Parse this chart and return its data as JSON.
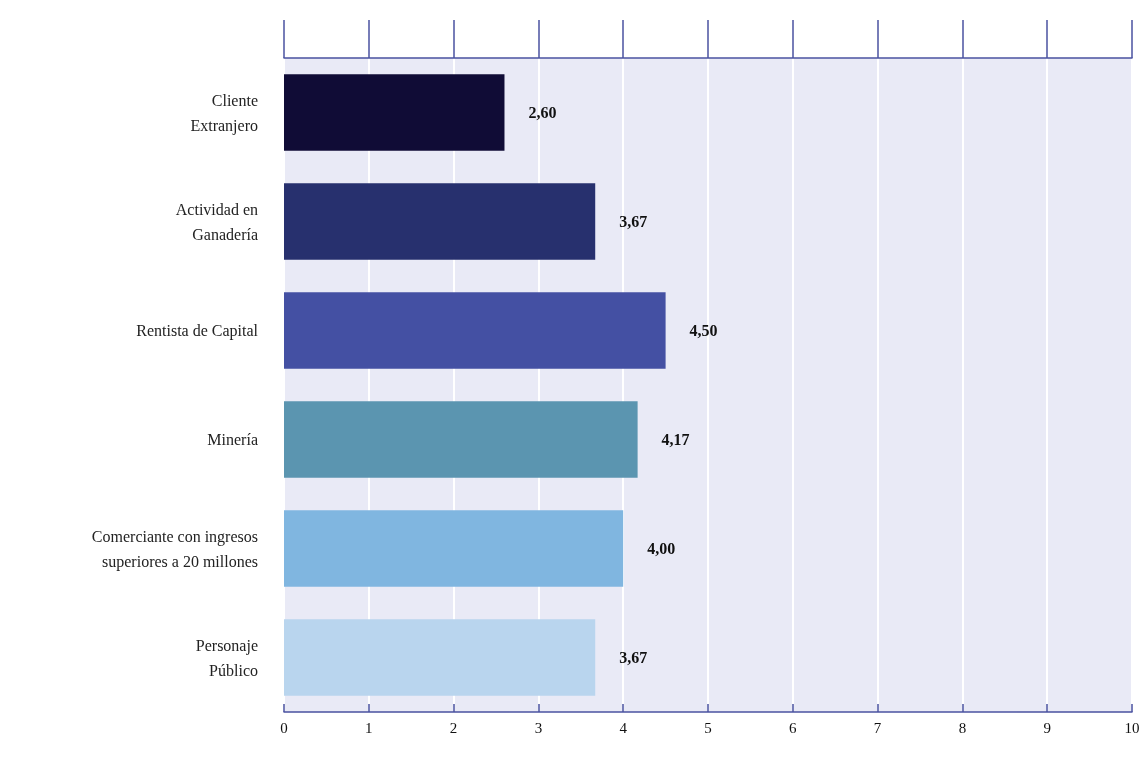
{
  "chart_data": {
    "type": "bar",
    "orientation": "horizontal",
    "categories": [
      "Cliente\nExtranjero",
      "Actividad en\nGanadería",
      "Rentista de Capital",
      "Minería",
      "Comerciante con ingresos\nsuperiores a 20 millones",
      "Personaje\nPúblico"
    ],
    "values": [
      2.6,
      3.67,
      4.5,
      4.17,
      4.0,
      3.67
    ],
    "colors": [
      "#100c36",
      "#27306e",
      "#4450a3",
      "#5b95b0",
      "#80b6e0",
      "#b9d5ee"
    ],
    "value_labels": [
      "2,60",
      "3,67",
      "4,50",
      "4,17",
      "4,00",
      "3,67"
    ],
    "xlim": [
      0,
      10
    ],
    "xticks": [
      0,
      1,
      2,
      3,
      4,
      5,
      6,
      7,
      8,
      9,
      10
    ],
    "grid": "x"
  }
}
